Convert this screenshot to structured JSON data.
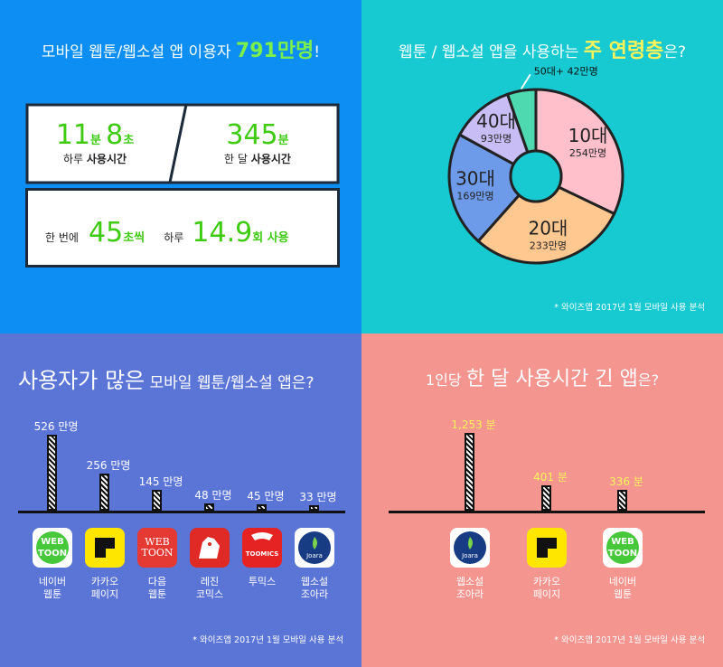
{
  "q1": {
    "title_pre": "모바일 웹툰/웹소설 앱 이용자",
    "title_hl": "791만명",
    "title_post": "!",
    "daily_min": "11",
    "daily_min_unit": "분",
    "daily_sec": "8",
    "daily_sec_unit": "초",
    "daily_label_pre": "하루",
    "daily_label_bold": "사용시간",
    "monthly_val": "345",
    "monthly_unit": "분",
    "monthly_label_pre": "한 달",
    "monthly_label_bold": "사용시간",
    "per_use_pre": "한 번에",
    "per_use_val": "45",
    "per_use_unit": "초씩",
    "daily_uses_pre": "하루",
    "daily_uses_val": "14.9",
    "daily_uses_unit": "회 사용"
  },
  "q2": {
    "title_pre": "웹툰 / 웹소설 앱을 사용하는",
    "title_hl": "주 연령층",
    "title_post": "은?",
    "source": "* 와이즈앱 2017년 1월 모바일 사용 분석"
  },
  "q3": {
    "title_big": "사용자가 많은",
    "title_rest": "모바일 웹툰/웹소설 앱은?",
    "source": "* 와이즈앱 2017년 1월 모바일 사용 분석"
  },
  "q4": {
    "title_pre": "1인당",
    "title_hl": "한 달 사용시간 긴 앱",
    "title_post": "은?",
    "source": "* 와이즈앱 2017년 1월 모바일 사용 분석"
  },
  "icons": {
    "webtoon_text1": "WEB",
    "webtoon_text2": "TOON",
    "daum_text1": "WEB",
    "daum_text2": "TOON",
    "toomics_text": "TOOMICS",
    "joara_text": "Joara"
  },
  "chart_data": [
    {
      "type": "pie",
      "categories": [
        "10대",
        "20대",
        "30대",
        "40대",
        "50대+"
      ],
      "values": [
        254,
        233,
        169,
        93,
        42
      ],
      "value_labels": [
        "254만명",
        "233만명",
        "169만명",
        "93만명",
        "42만명"
      ],
      "colors": [
        "#ffc0cc",
        "#ffc891",
        "#6d9bea",
        "#c9bdf6",
        "#4fd9b0"
      ],
      "donut": true
    },
    {
      "type": "bar",
      "categories": [
        "네이버 웹툰",
        "카카오 페이지",
        "다음 웹툰",
        "레진 코믹스",
        "투믹스",
        "웹소설 조아라"
      ],
      "category_lines": [
        [
          "네이버",
          "웹툰"
        ],
        [
          "카카오",
          "페이지"
        ],
        [
          "다음",
          "웹툰"
        ],
        [
          "레진",
          "코믹스"
        ],
        [
          "투믹스"
        ],
        [
          "웹소설",
          "조아라"
        ]
      ],
      "values": [
        526,
        256,
        145,
        48,
        45,
        33
      ],
      "value_labels": [
        "526 만명",
        "256 만명",
        "145 만명",
        "48 만명",
        "45 만명",
        "33 만명"
      ]
    },
    {
      "type": "bar",
      "categories": [
        "웹소설 조아라",
        "카카오 페이지",
        "네이버 웹툰"
      ],
      "category_lines": [
        [
          "웹소설",
          "조아라"
        ],
        [
          "카카오",
          "페이지"
        ],
        [
          "네이버",
          "웹툰"
        ]
      ],
      "values": [
        1253,
        401,
        336
      ],
      "value_labels": [
        "1,253 분",
        "401 분",
        "336 분"
      ]
    }
  ]
}
